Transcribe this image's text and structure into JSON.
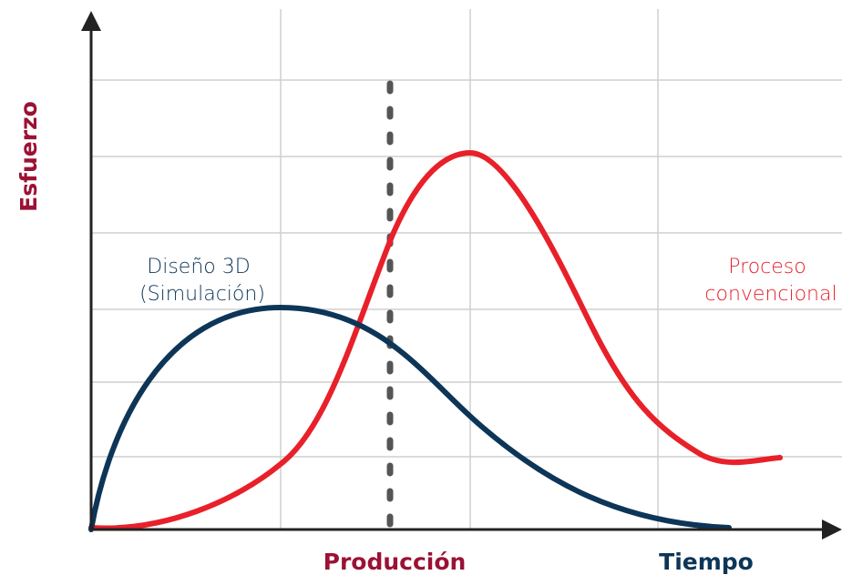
{
  "axes": {
    "y_label": "Esfuerzo",
    "x_label": "Tiempo",
    "marker_label": "Producción"
  },
  "curves": [
    {
      "label_lines": [
        "Diseño 3D",
        "(Simulación)"
      ]
    },
    {
      "label_lines": [
        "Proceso",
        "convencional"
      ]
    }
  ]
}
